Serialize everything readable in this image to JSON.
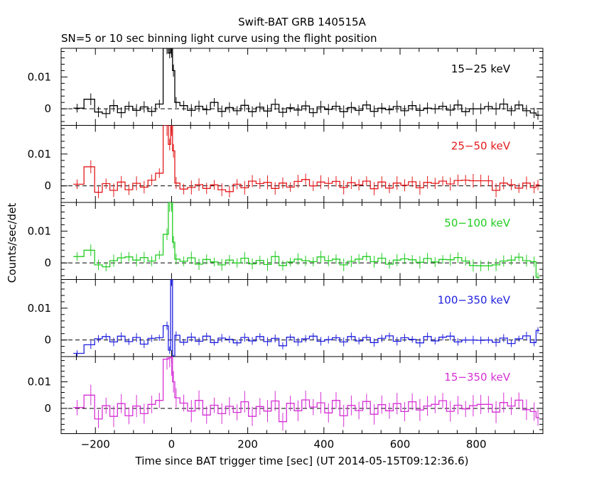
{
  "chart_data": {
    "type": "line",
    "title": "Swift-BAT GRB 140515A",
    "subtitle": "SN=5 or 10 sec binning light curve using the flight position",
    "xlabel": "Time since BAT trigger time [sec] (UT 2014-05-15T09:12:36.6)",
    "ylabel": "Counts/sec/det",
    "xlim": [
      -290,
      975
    ],
    "x_ticks": [
      -200,
      0,
      200,
      400,
      600,
      800
    ],
    "x_tick_labels": [
      "−200",
      "0",
      "200",
      "400",
      "600",
      "800"
    ],
    "y_ticks": [
      0,
      0.01
    ],
    "y_tick_labels": [
      "0",
      "0.01"
    ],
    "grid": false,
    "reference_line": "dashed at y = 0",
    "panels": [
      {
        "name": "15-25 keV",
        "label": "15−25 keV",
        "color": "#000000",
        "ylim": [
          -0.0052,
          0.019
        ],
        "noise": 0.0017,
        "peak": 0.0195,
        "t": [
          -248,
          -212,
          -192,
          -172,
          -152,
          -132,
          -112,
          -92,
          -72,
          -52,
          -32,
          -12,
          -5,
          0,
          5,
          12,
          32,
          52,
          72,
          92,
          112,
          132,
          152,
          172,
          192,
          212,
          232,
          252,
          272,
          292,
          312,
          332,
          352,
          372,
          392,
          412,
          432,
          452,
          472,
          492,
          512,
          532,
          552,
          572,
          592,
          612,
          632,
          652,
          672,
          692,
          712,
          732,
          752,
          772,
          792,
          812,
          832,
          852,
          872,
          892,
          912,
          932,
          952,
          962
        ],
        "v": [
          0.0002,
          0.003,
          -0.001,
          -0.0015,
          0.001,
          -0.0012,
          0.0008,
          -0.0005,
          0.0006,
          -0.0008,
          0.0015,
          0.019,
          0.0175,
          0.0195,
          0.012,
          0.002,
          0.001,
          -0.0005,
          0.0008,
          -0.0003,
          0.002,
          -0.0008,
          0.0004,
          -0.0006,
          0.0011,
          -0.0009,
          0.0005,
          -0.0007,
          0.0014,
          -0.0011,
          0.0003,
          -0.0004,
          0.0009,
          -0.0012,
          0.0006,
          -0.0002,
          0.0008,
          -0.0009,
          0.0004,
          -0.0005,
          0.0012,
          -0.0008,
          0.0002,
          -0.0003,
          0.0007,
          -0.0006,
          0.001,
          -0.0005,
          0.0002,
          0.0,
          0.0008,
          -0.0004,
          0.0012,
          -0.0009,
          0.0,
          0.0,
          0.0007,
          0.0,
          0.0015,
          -0.0006,
          0.0012,
          -0.0006,
          -0.0013,
          -0.002
        ]
      },
      {
        "name": "25-50 keV",
        "label": "25−50 keV",
        "color": "#e31a1c",
        "ylim": [
          -0.0052,
          0.019
        ],
        "noise": 0.0019,
        "peak": 0.0195,
        "t": [
          -248,
          -212,
          -192,
          -172,
          -152,
          -132,
          -112,
          -92,
          -72,
          -52,
          -32,
          -12,
          -5,
          0,
          5,
          12,
          32,
          52,
          72,
          92,
          112,
          132,
          152,
          172,
          192,
          212,
          232,
          252,
          272,
          292,
          312,
          332,
          352,
          372,
          392,
          412,
          432,
          452,
          472,
          492,
          512,
          532,
          552,
          572,
          592,
          612,
          632,
          652,
          672,
          692,
          712,
          732,
          752,
          772,
          792,
          812,
          832,
          852,
          872,
          892,
          912,
          932,
          952,
          962
        ],
        "v": [
          0.0005,
          0.006,
          -0.002,
          0.0007,
          -0.0014,
          0.0012,
          -0.0012,
          0.0008,
          -0.0004,
          0.0018,
          0.004,
          0.0195,
          0.013,
          0.0195,
          0.011,
          0.0009,
          -0.001,
          -0.0005,
          0.0004,
          -0.0008,
          0.0003,
          -0.0012,
          -0.0018,
          0.0005,
          -0.0006,
          0.0015,
          0.0007,
          0.0011,
          -0.0008,
          0.0009,
          -0.0004,
          0.0014,
          0.002,
          0.0,
          0.0012,
          0.0008,
          0.0014,
          -0.0005,
          0.001,
          0.0003,
          0.0015,
          -0.0009,
          0.0012,
          -0.0007,
          0.0009,
          0.0002,
          0.0013,
          -0.0006,
          0.0011,
          0.0008,
          0.0015,
          0.0006,
          0.0017,
          0.0018,
          0.0016,
          0.0016,
          0.0016,
          -0.0014,
          0.0009,
          0.0004,
          -0.0007,
          0.0009,
          -0.0005,
          0.0003
        ]
      },
      {
        "name": "50-100 keV",
        "label": "50−100 keV",
        "color": "#22cc22",
        "ylim": [
          -0.0052,
          0.019
        ],
        "noise": 0.0017,
        "peak": 0.0195,
        "t": [
          -248,
          -212,
          -192,
          -172,
          -152,
          -132,
          -112,
          -92,
          -72,
          -52,
          -32,
          -12,
          -5,
          0,
          5,
          12,
          32,
          52,
          72,
          92,
          112,
          132,
          152,
          172,
          192,
          212,
          232,
          252,
          272,
          292,
          312,
          332,
          352,
          372,
          392,
          412,
          432,
          452,
          472,
          492,
          512,
          532,
          552,
          572,
          592,
          612,
          632,
          652,
          672,
          692,
          712,
          732,
          752,
          772,
          792,
          812,
          832,
          852,
          872,
          892,
          912,
          932,
          952,
          962
        ],
        "v": [
          0.002,
          0.004,
          -0.0006,
          -0.0012,
          0.0007,
          0.0016,
          0.0019,
          0.0009,
          0.0017,
          0.0006,
          0.0025,
          0.009,
          0.0195,
          0.0195,
          0.0065,
          0.0012,
          0.0005,
          0.0016,
          -0.0004,
          0.0011,
          0.0003,
          -0.0006,
          0.0009,
          0.0,
          0.0015,
          -0.0003,
          0.0008,
          -0.0005,
          0.002,
          -0.0008,
          0.0003,
          0.0012,
          0.0007,
          0.0004,
          0.0019,
          0.0007,
          0.0012,
          -0.0006,
          0.0005,
          0.0012,
          0.002,
          0.0004,
          0.0015,
          -0.0004,
          0.0009,
          0.0013,
          0.001,
          0.0002,
          0.0014,
          0.0003,
          0.0011,
          0.001,
          0.0017,
          0.0006,
          -0.0008,
          -0.0009,
          -0.0009,
          -0.0006,
          0.0006,
          0.0009,
          0.0018,
          0.0007,
          0.0004,
          -0.0045
        ]
      },
      {
        "name": "100-350 keV",
        "label": "100−350 keV",
        "color": "#1f1fe0",
        "ylim": [
          -0.0052,
          0.019
        ],
        "noise": 0.0012,
        "peak": 0.0195,
        "t": [
          -248,
          -212,
          -192,
          -172,
          -152,
          -132,
          -112,
          -92,
          -72,
          -52,
          -32,
          -12,
          -5,
          0,
          5,
          12,
          32,
          52,
          72,
          92,
          112,
          132,
          152,
          172,
          192,
          212,
          232,
          252,
          272,
          292,
          312,
          332,
          352,
          372,
          392,
          412,
          432,
          452,
          472,
          492,
          512,
          532,
          552,
          572,
          592,
          612,
          632,
          652,
          672,
          692,
          712,
          732,
          752,
          772,
          792,
          812,
          832,
          852,
          872,
          892,
          912,
          932,
          952,
          962
        ],
        "v": [
          -0.0042,
          -0.0015,
          0.0004,
          0.0011,
          -0.0006,
          0.0012,
          -0.0005,
          0.0008,
          -0.0013,
          0.0005,
          0.0007,
          0.0045,
          -0.0032,
          0.0195,
          -0.006,
          0.0015,
          -0.0007,
          0.0009,
          -0.0004,
          0.0012,
          -0.0008,
          0.0006,
          0.0002,
          -0.0009,
          0.0008,
          -0.0003,
          0.0011,
          -0.0005,
          0.0005,
          -0.0018,
          0.0009,
          -0.0006,
          0.0004,
          0.0012,
          -0.0004,
          0.0001,
          0.0007,
          -0.0006,
          0.0011,
          -0.0003,
          0.0008,
          -0.0008,
          0.0005,
          0.0013,
          -0.0004,
          0.0007,
          0.0002,
          -0.0009,
          0.0011,
          -0.0003,
          0.0009,
          0.0012,
          -0.0006,
          0.0,
          0.0,
          -0.0001,
          0.0,
          -0.0007,
          0.0006,
          -0.0011,
          0.0004,
          0.0013,
          -0.0008,
          0.003
        ]
      },
      {
        "name": "15-350 keV",
        "label": "15−350 keV",
        "color": "#d62fd6",
        "ylim": [
          -0.0095,
          0.0195
        ],
        "noise": 0.0036,
        "peak": 0.0195,
        "t": [
          -248,
          -212,
          -192,
          -172,
          -152,
          -132,
          -112,
          -92,
          -72,
          -52,
          -32,
          -12,
          -5,
          0,
          5,
          12,
          32,
          52,
          72,
          92,
          112,
          132,
          152,
          172,
          192,
          212,
          232,
          252,
          272,
          292,
          312,
          332,
          352,
          372,
          392,
          412,
          432,
          452,
          472,
          492,
          512,
          532,
          552,
          572,
          592,
          612,
          632,
          652,
          672,
          692,
          712,
          732,
          752,
          772,
          792,
          812,
          832,
          852,
          872,
          892,
          912,
          932,
          952,
          962
        ],
        "v": [
          0.0003,
          0.005,
          -0.004,
          0.001,
          -0.003,
          0.0018,
          -0.0028,
          0.0009,
          -0.002,
          0.0015,
          0.003,
          0.0185,
          0.019,
          0.0195,
          0.01,
          0.004,
          0.002,
          -0.001,
          0.003,
          -0.0025,
          0.0012,
          -0.002,
          0.0008,
          -0.0015,
          0.0025,
          -0.003,
          0.0007,
          -0.001,
          0.0028,
          -0.005,
          0.0019,
          -0.0009,
          0.0032,
          0.0005,
          0.0021,
          -0.0017,
          0.003,
          -0.0028,
          0.0011,
          -0.0008,
          0.0026,
          -0.0022,
          0.0014,
          -0.0009,
          0.0018,
          -0.0012,
          0.0025,
          -0.0006,
          0.0009,
          0.0015,
          0.0029,
          -0.0011,
          0.0012,
          -0.0002,
          0.001,
          0.0015,
          0.0015,
          -0.0014,
          0.0022,
          0.0009,
          0.0031,
          -0.0005,
          -0.0012,
          -0.0035
        ]
      }
    ]
  }
}
